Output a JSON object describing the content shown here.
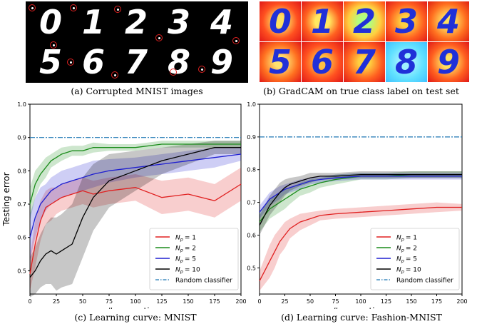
{
  "panel_a": {
    "caption": "(a) Corrupted MNIST images",
    "digits": [
      "0",
      "1",
      "2",
      "3",
      "4",
      "5",
      "6",
      "7",
      "8",
      "9"
    ]
  },
  "panel_b": {
    "caption": "(b) GradCAM on true class label on test set",
    "digits": [
      "0",
      "1",
      "2",
      "3",
      "4",
      "5",
      "6",
      "7",
      "8",
      "9"
    ]
  },
  "colors": {
    "np1": "#e02020",
    "np2": "#1a8c1a",
    "np5": "#1f1fd0",
    "np10": "#000000",
    "random": "#1f77b4"
  },
  "chart_data": [
    {
      "type": "line",
      "caption": "(c) Learning curve: MNIST",
      "xlabel": "#generations",
      "ylabel": "Testing error",
      "xlim": [
        0,
        200
      ],
      "ylim": [
        0.43,
        1.0
      ],
      "xticks": [
        "0",
        "25",
        "50",
        "75",
        "100",
        "125",
        "150",
        "175",
        "200"
      ],
      "yticks": [
        "0.5",
        "0.6",
        "0.7",
        "0.8",
        "0.9",
        "1.0"
      ],
      "legend_position": "bottom-right",
      "x": [
        0,
        5,
        10,
        15,
        20,
        25,
        30,
        40,
        50,
        60,
        75,
        100,
        125,
        150,
        175,
        200
      ],
      "series": [
        {
          "name": "N_p = 1",
          "label_sub": "p",
          "label_val": "= 1",
          "color": "#e02020",
          "values": [
            0.49,
            0.58,
            0.65,
            0.69,
            0.7,
            0.71,
            0.72,
            0.73,
            0.74,
            0.73,
            0.74,
            0.75,
            0.72,
            0.73,
            0.71,
            0.76
          ],
          "band": [
            0.05,
            0.07,
            0.06,
            0.05,
            0.05,
            0.04,
            0.04,
            0.04,
            0.04,
            0.04,
            0.04,
            0.04,
            0.05,
            0.05,
            0.05,
            0.05
          ]
        },
        {
          "name": "N_p = 2",
          "label_sub": "p",
          "label_val": "= 2",
          "color": "#1a8c1a",
          "values": [
            0.7,
            0.76,
            0.79,
            0.81,
            0.83,
            0.84,
            0.85,
            0.86,
            0.86,
            0.87,
            0.87,
            0.87,
            0.88,
            0.88,
            0.88,
            0.88
          ],
          "band": [
            0.05,
            0.04,
            0.03,
            0.03,
            0.02,
            0.02,
            0.02,
            0.015,
            0.015,
            0.015,
            0.01,
            0.01,
            0.01,
            0.01,
            0.01,
            0.01
          ]
        },
        {
          "name": "N_p = 5",
          "label_sub": "p",
          "label_val": "= 5",
          "color": "#1f1fd0",
          "values": [
            0.6,
            0.66,
            0.7,
            0.72,
            0.74,
            0.75,
            0.76,
            0.77,
            0.78,
            0.79,
            0.8,
            0.81,
            0.82,
            0.83,
            0.84,
            0.85
          ],
          "band": [
            0.07,
            0.06,
            0.05,
            0.04,
            0.04,
            0.04,
            0.04,
            0.04,
            0.04,
            0.04,
            0.035,
            0.03,
            0.03,
            0.03,
            0.03,
            0.02
          ]
        },
        {
          "name": "N_p = 10",
          "label_sub": "p",
          "label_val": "= 10",
          "color": "#000000",
          "values": [
            0.48,
            0.5,
            0.53,
            0.55,
            0.56,
            0.55,
            0.56,
            0.58,
            0.66,
            0.72,
            0.77,
            0.8,
            0.83,
            0.85,
            0.87,
            0.87
          ],
          "band": [
            0.06,
            0.07,
            0.08,
            0.09,
            0.1,
            0.11,
            0.11,
            0.12,
            0.12,
            0.1,
            0.08,
            0.06,
            0.04,
            0.03,
            0.02,
            0.02
          ]
        }
      ],
      "reference": {
        "name": "Random classifier",
        "value": 0.9,
        "color": "#1f77b4"
      }
    },
    {
      "type": "line",
      "caption": "(d) Learning curve: Fashion-MNIST",
      "xlabel": "#generations",
      "ylabel": "",
      "xlim": [
        0,
        200
      ],
      "ylim": [
        0.42,
        1.0
      ],
      "xticks": [
        "0",
        "25",
        "50",
        "75",
        "100",
        "125",
        "150",
        "175",
        "200"
      ],
      "yticks": [
        "0.5",
        "0.6",
        "0.7",
        "0.8",
        "0.9",
        "1.0"
      ],
      "legend_position": "bottom-right",
      "x": [
        0,
        5,
        10,
        15,
        20,
        25,
        30,
        40,
        50,
        60,
        75,
        100,
        125,
        150,
        175,
        200
      ],
      "series": [
        {
          "name": "N_p = 1",
          "label_sub": "p",
          "label_val": "= 1",
          "color": "#e02020",
          "values": [
            0.46,
            0.49,
            0.52,
            0.55,
            0.58,
            0.6,
            0.62,
            0.64,
            0.65,
            0.66,
            0.665,
            0.67,
            0.675,
            0.68,
            0.685,
            0.685
          ],
          "band": [
            0.03,
            0.04,
            0.05,
            0.05,
            0.04,
            0.04,
            0.03,
            0.025,
            0.02,
            0.015,
            0.015,
            0.015,
            0.015,
            0.015,
            0.015,
            0.01
          ]
        },
        {
          "name": "N_p = 2",
          "label_sub": "p",
          "label_val": "= 2",
          "color": "#1a8c1a",
          "values": [
            0.64,
            0.66,
            0.68,
            0.69,
            0.7,
            0.71,
            0.72,
            0.74,
            0.75,
            0.76,
            0.77,
            0.78,
            0.78,
            0.785,
            0.785,
            0.785
          ],
          "band": [
            0.03,
            0.03,
            0.03,
            0.03,
            0.03,
            0.03,
            0.025,
            0.02,
            0.02,
            0.015,
            0.015,
            0.01,
            0.01,
            0.01,
            0.01,
            0.01
          ]
        },
        {
          "name": "N_p = 5",
          "label_sub": "p",
          "label_val": "= 5",
          "color": "#1f1fd0",
          "values": [
            0.67,
            0.69,
            0.71,
            0.72,
            0.73,
            0.74,
            0.745,
            0.755,
            0.765,
            0.77,
            0.775,
            0.78,
            0.78,
            0.78,
            0.78,
            0.78
          ],
          "band": [
            0.02,
            0.02,
            0.02,
            0.02,
            0.02,
            0.015,
            0.015,
            0.015,
            0.01,
            0.01,
            0.01,
            0.01,
            0.01,
            0.01,
            0.01,
            0.01
          ]
        },
        {
          "name": "N_p = 10",
          "label_sub": "p",
          "label_val": "= 10",
          "color": "#000000",
          "values": [
            0.63,
            0.66,
            0.69,
            0.71,
            0.73,
            0.745,
            0.755,
            0.765,
            0.775,
            0.78,
            0.78,
            0.785,
            0.785,
            0.785,
            0.785,
            0.785
          ],
          "band": [
            0.03,
            0.03,
            0.03,
            0.03,
            0.03,
            0.025,
            0.02,
            0.015,
            0.015,
            0.01,
            0.01,
            0.01,
            0.01,
            0.01,
            0.01,
            0.01
          ]
        }
      ],
      "reference": {
        "name": "Random classifier",
        "value": 0.9,
        "color": "#1f77b4"
      }
    }
  ]
}
